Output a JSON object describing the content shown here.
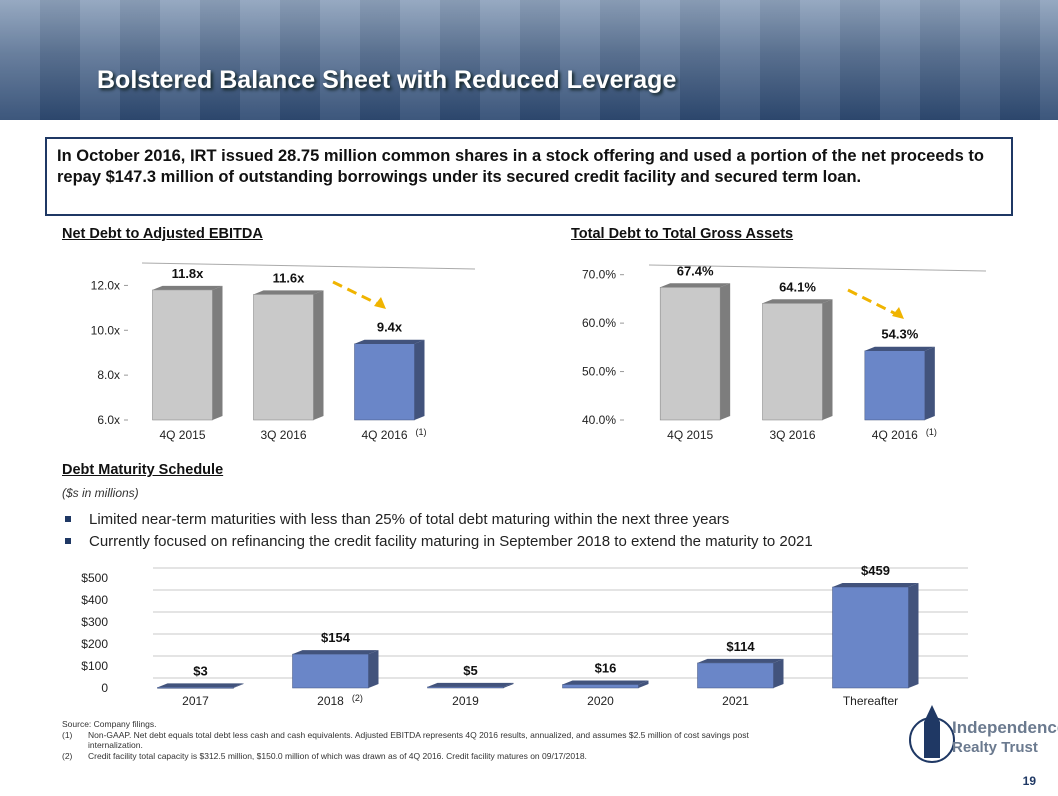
{
  "header": {
    "title": "Bolstered Balance Sheet with Reduced Leverage"
  },
  "intro": "In October 2016, IRT issued 28.75 million common shares in a stock offering and used a portion of the net proceeds to repay $147.3 million of outstanding borrowings under its secured credit facility and secured term loan.",
  "chart_data": [
    {
      "type": "bar",
      "title": "Net Debt to Adjusted EBITDA",
      "categories": [
        "4Q 2015",
        "3Q 2016",
        "4Q 2016"
      ],
      "category_notes": [
        null,
        null,
        "(1)"
      ],
      "values": [
        11.8,
        11.6,
        9.4
      ],
      "value_labels": [
        "11.8x",
        "11.6x",
        "9.4x"
      ],
      "colors": [
        "#c9c9c9",
        "#c9c9c9",
        "#6a86c8"
      ],
      "ylim": [
        6,
        13
      ],
      "yticks": [
        {
          "value": 6,
          "label": "6.0x"
        },
        {
          "value": 8,
          "label": "8.0x"
        },
        {
          "value": 10,
          "label": "10.0x"
        },
        {
          "value": 12,
          "label": "12.0x"
        }
      ],
      "grid": false
    },
    {
      "type": "bar",
      "title": "Total Debt to Total Gross Assets",
      "categories": [
        "4Q 2015",
        "3Q 2016",
        "4Q 2016"
      ],
      "category_notes": [
        null,
        null,
        "(1)"
      ],
      "values": [
        67.4,
        64.1,
        54.3
      ],
      "value_labels": [
        "67.4%",
        "64.1%",
        "54.3%"
      ],
      "colors": [
        "#c9c9c9",
        "#c9c9c9",
        "#6a86c8"
      ],
      "ylim": [
        40,
        72
      ],
      "yticks": [
        {
          "value": 40,
          "label": "40.0%"
        },
        {
          "value": 50,
          "label": "50.0%"
        },
        {
          "value": 60,
          "label": "60.0%"
        },
        {
          "value": 70,
          "label": "70.0%"
        }
      ],
      "grid": false
    },
    {
      "type": "bar",
      "title": "Debt Maturity Schedule",
      "subtitle": "($s in millions)",
      "bullets": [
        "Limited near-term maturities with less than 25% of total debt maturing within the next three years",
        "Currently focused on refinancing the credit facility maturing in September 2018 to extend the maturity to 2021"
      ],
      "categories": [
        "2017",
        "2018",
        "2019",
        "2020",
        "2021",
        "Thereafter"
      ],
      "category_notes": [
        null,
        "(2)",
        null,
        null,
        null,
        null
      ],
      "values": [
        3,
        154,
        5,
        16,
        114,
        459
      ],
      "value_labels": [
        "$3",
        "$154",
        "$5",
        "$16",
        "$114",
        "$459"
      ],
      "color": "#6a86c8",
      "ylim": [
        0,
        500
      ],
      "yticks": [
        0,
        {
          "value": 100,
          "label": "$100"
        },
        {
          "value": 200,
          "label": "$200"
        },
        {
          "value": 300,
          "label": "$300"
        },
        {
          "value": 400,
          "label": "$400"
        },
        {
          "value": 500,
          "label": "$500"
        }
      ],
      "grid": true
    }
  ],
  "footnotes": {
    "source": "Source: Company filings.",
    "notes": [
      {
        "marker": "(1)",
        "text": "Non-GAAP. Net debt equals total debt less cash and cash equivalents. Adjusted EBITDA represents 4Q 2016 results, annualized, and assumes $2.5 million of cost savings post internalization."
      },
      {
        "marker": "(2)",
        "text": "Credit facility total capacity is $312.5 million, $150.0 million of which was drawn as of 4Q 2016.  Credit facility matures on 09/17/2018."
      }
    ]
  },
  "logo": {
    "line1": "Independence",
    "line2": "Realty Trust"
  },
  "page_number": "19"
}
